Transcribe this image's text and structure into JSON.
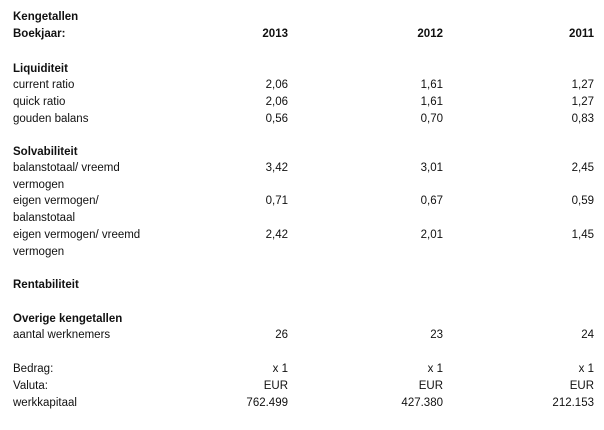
{
  "header": {
    "title": "Kengetallen",
    "boekjaar_label": "Boekjaar:",
    "years": [
      "2013",
      "2012",
      "2011"
    ]
  },
  "liquiditeit": {
    "heading": "Liquiditeit",
    "rows": [
      {
        "label": "current ratio",
        "values": [
          "2,06",
          "1,61",
          "1,27"
        ]
      },
      {
        "label": "quick ratio",
        "values": [
          "2,06",
          "1,61",
          "1,27"
        ]
      },
      {
        "label": "gouden balans",
        "values": [
          "0,56",
          "0,70",
          "0,83"
        ]
      }
    ]
  },
  "solvabiliteit": {
    "heading": "Solvabiliteit",
    "rows": [
      {
        "label_line1": "balanstotaal/ vreemd",
        "label_line2": "vermogen",
        "values": [
          "3,42",
          "3,01",
          "2,45"
        ]
      },
      {
        "label_line1": "eigen vermogen/",
        "label_line2": "balanstotaal",
        "values": [
          "0,71",
          "0,67",
          "0,59"
        ]
      },
      {
        "label_line1": "eigen vermogen/ vreemd",
        "label_line2": "vermogen",
        "values": [
          "2,42",
          "2,01",
          "1,45"
        ]
      }
    ]
  },
  "rentabiliteit": {
    "heading": "Rentabiliteit"
  },
  "overige": {
    "heading": "Overige kengetallen",
    "rows": [
      {
        "label": "aantal werknemers",
        "values": [
          "26",
          "23",
          "24"
        ]
      }
    ]
  },
  "footer": {
    "rows": [
      {
        "label": "Bedrag:",
        "values": [
          "x 1",
          "x 1",
          "x 1"
        ]
      },
      {
        "label": "Valuta:",
        "values": [
          "EUR",
          "EUR",
          "EUR"
        ]
      },
      {
        "label": "werkkapitaal",
        "values": [
          "762.499",
          "427.380",
          "212.153"
        ]
      }
    ]
  }
}
